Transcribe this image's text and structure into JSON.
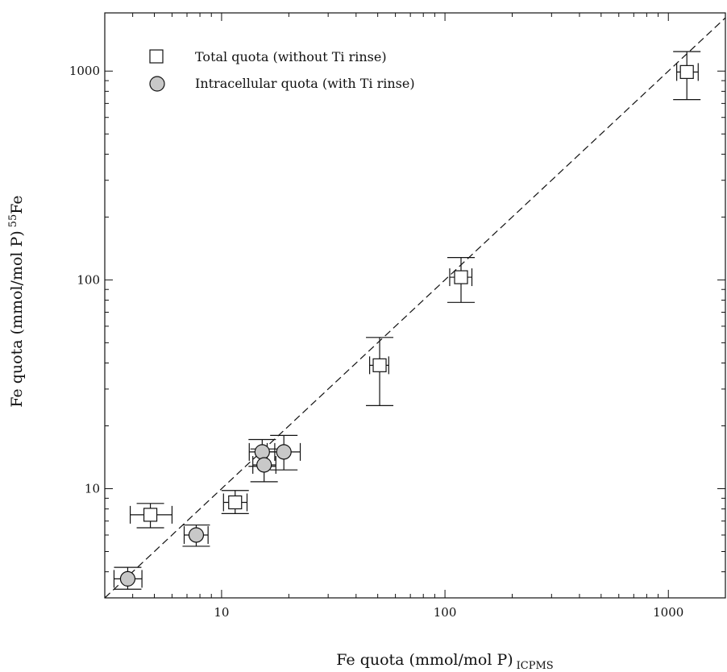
{
  "chart_data": {
    "type": "scatter",
    "x_scale": "log",
    "y_scale": "log",
    "xlim": [
      3.0,
      1800
    ],
    "ylim": [
      3.0,
      1900
    ],
    "x_ticks": [
      10,
      100,
      1000
    ],
    "x_tick_labels": [
      "10",
      "100",
      "1000"
    ],
    "y_ticks": [
      10,
      100,
      1000
    ],
    "y_tick_labels": [
      "10",
      "100",
      "1000"
    ],
    "xlabel": "Fe quota (mmol/mol P)",
    "xlabel_sub": "ICPMS",
    "ylabel": "Fe quota (mmol/mol P)",
    "ylabel_sup": "55",
    "ylabel_sup_tail": "Fe",
    "grid": false,
    "legend_position": "top-left",
    "reference_line": {
      "style": "dashed",
      "relation": "1:1",
      "x": [
        3.0,
        1800
      ],
      "y": [
        3.0,
        1800
      ]
    },
    "series": [
      {
        "name": "Total quota (without Ti rinse)",
        "marker": "square",
        "fill": "#ffffff",
        "points": [
          {
            "x": 4.8,
            "y": 7.5,
            "x_err": [
              3.9,
              6.0
            ],
            "y_err": [
              6.5,
              8.5
            ]
          },
          {
            "x": 11.5,
            "y": 8.6,
            "x_err": [
              10.2,
              13.0
            ],
            "y_err": [
              7.6,
              9.8
            ]
          },
          {
            "x": 51,
            "y": 39,
            "x_err": [
              46,
              56
            ],
            "y_err": [
              25,
              53
            ]
          },
          {
            "x": 118,
            "y": 103,
            "x_err": [
              105,
              132
            ],
            "y_err": [
              78,
              128
            ]
          },
          {
            "x": 1210,
            "y": 990,
            "x_err": [
              1090,
              1360
            ],
            "y_err": [
              730,
              1240
            ]
          }
        ]
      },
      {
        "name": "Intracellular quota (with Ti rinse)",
        "marker": "circle",
        "fill": "#c8c8c8",
        "points": [
          {
            "x": 3.8,
            "y": 3.7,
            "x_err": [
              3.3,
              4.4
            ],
            "y_err": [
              3.3,
              4.2
            ]
          },
          {
            "x": 7.7,
            "y": 6.0,
            "x_err": [
              6.8,
              8.7
            ],
            "y_err": [
              5.3,
              6.7
            ]
          },
          {
            "x": 15.2,
            "y": 15.0,
            "x_err": [
              13.3,
              17.3
            ],
            "y_err": [
              12.8,
              17.2
            ]
          },
          {
            "x": 15.5,
            "y": 13.0,
            "x_err": [
              13.8,
              17.5
            ],
            "y_err": [
              10.8,
              15.5
            ]
          },
          {
            "x": 19.0,
            "y": 15.0,
            "x_err": [
              16.0,
              22.5
            ],
            "y_err": [
              12.3,
              18.0
            ]
          }
        ]
      }
    ]
  }
}
